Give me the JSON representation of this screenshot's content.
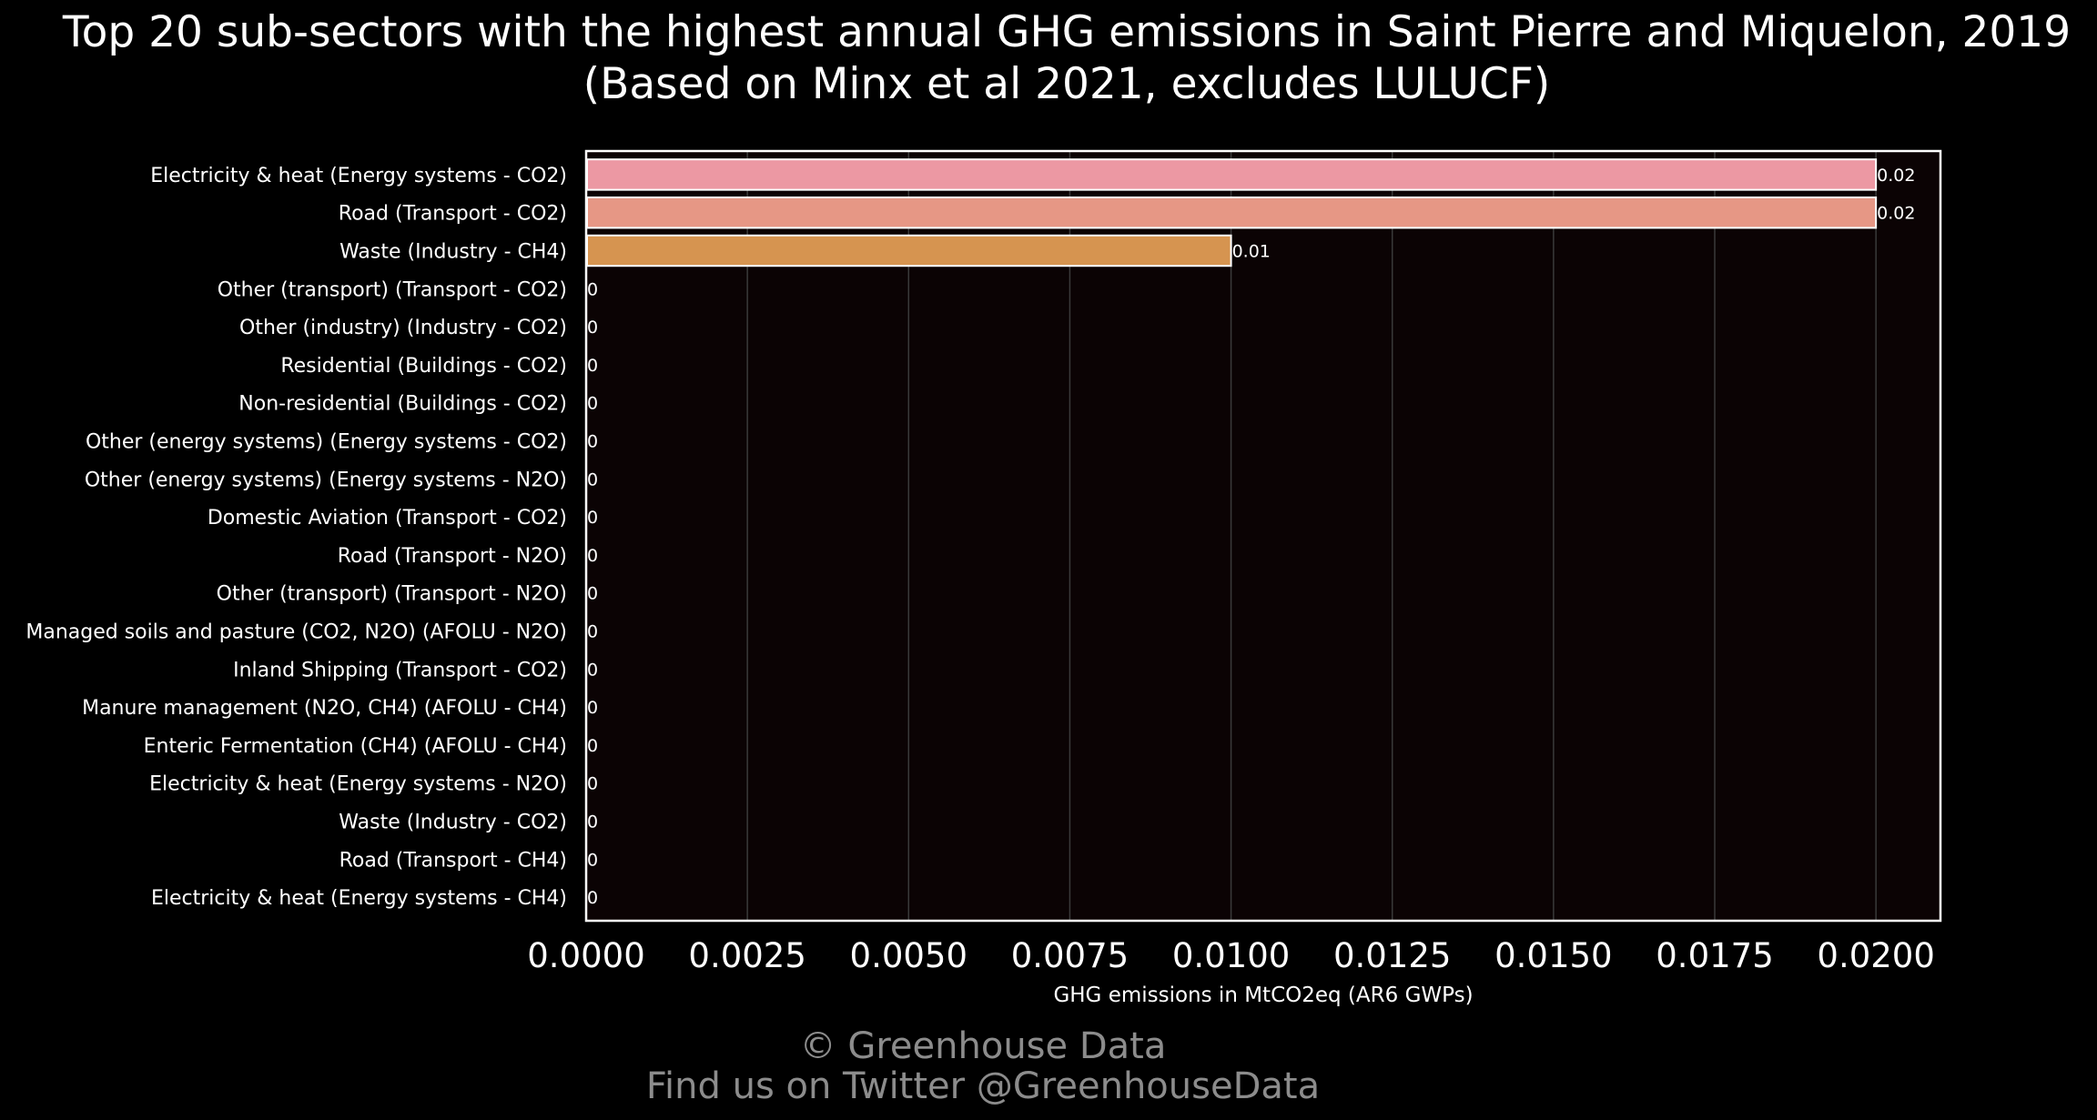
{
  "chart_data": {
    "type": "bar",
    "orientation": "horizontal",
    "title": "Top 20 sub-sectors with the highest annual GHG emissions in Saint Pierre and Miquelon, 2019",
    "subtitle": "(Based on Minx et al 2021, excludes LULUCF)",
    "xlabel": "GHG emissions in MtCO2eq (AR6 GWPs)",
    "ylabel": "",
    "xlim": [
      0,
      0.021
    ],
    "xticks": [
      "0.0000",
      "0.0025",
      "0.0050",
      "0.0075",
      "0.0100",
      "0.0125",
      "0.0150",
      "0.0175",
      "0.0200"
    ],
    "xtick_values": [
      0,
      0.0025,
      0.005,
      0.0075,
      0.01,
      0.0125,
      0.015,
      0.0175,
      0.02
    ],
    "grid": true,
    "categories": [
      "Electricity & heat (Energy systems - CO2)",
      "Road (Transport - CO2)",
      "Waste (Industry - CH4)",
      "Other (transport) (Transport - CO2)",
      "Other (industry) (Industry - CO2)",
      "Residential (Buildings - CO2)",
      "Non-residential (Buildings - CO2)",
      "Other (energy systems) (Energy systems - CO2)",
      "Other (energy systems) (Energy systems - N2O)",
      "Domestic Aviation (Transport - CO2)",
      "Road (Transport - N2O)",
      "Other (transport) (Transport - N2O)",
      "Managed soils and pasture (CO2, N2O) (AFOLU - N2O)",
      "Inland Shipping (Transport - CO2)",
      "Manure management (N2O, CH4) (AFOLU - CH4)",
      "Enteric Fermentation (CH4) (AFOLU - CH4)",
      "Electricity & heat (Energy systems - N2O)",
      "Waste (Industry - CO2)",
      "Road (Transport - CH4)",
      "Electricity & heat (Energy systems - CH4)"
    ],
    "values": [
      0.02,
      0.02,
      0.01,
      0,
      0,
      0,
      0,
      0,
      0,
      0,
      0,
      0,
      0,
      0,
      0,
      0,
      0,
      0,
      0,
      0
    ],
    "data_labels": [
      "0.02",
      "0.02",
      "0.01",
      "0",
      "0",
      "0",
      "0",
      "0",
      "0",
      "0",
      "0",
      "0",
      "0",
      "0",
      "0",
      "0",
      "0",
      "0",
      "0",
      "0"
    ],
    "bar_colors": [
      "#ec98a3",
      "#e69785",
      "#d69450"
    ],
    "colors": {
      "background": "#000000",
      "plot_background": "#0b0304",
      "grid": "#3a3a3a",
      "axes": "#ffffff",
      "text": "#ffffff",
      "footer": "#8c8c8c"
    }
  },
  "footer": {
    "copyright": "© Greenhouse Data",
    "twitter": "Find us on Twitter @GreenhouseData"
  }
}
